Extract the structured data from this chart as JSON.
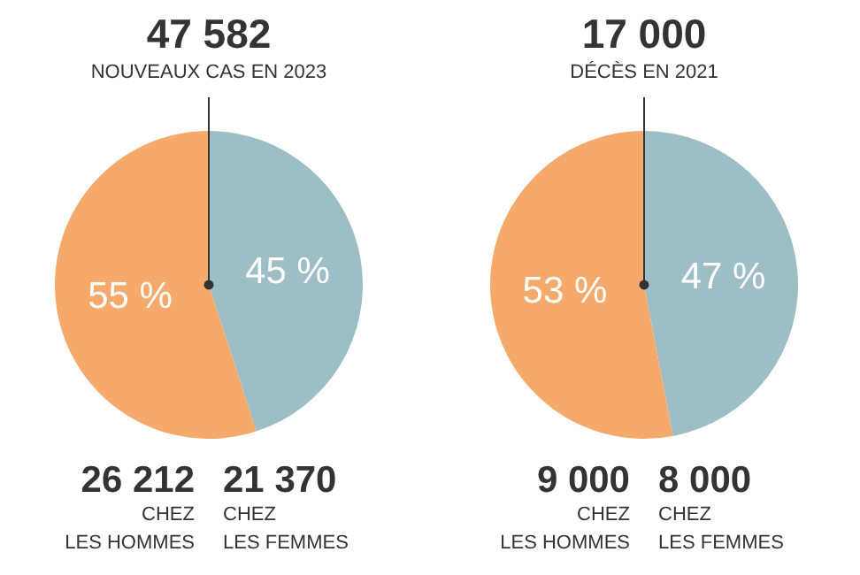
{
  "chart_data": [
    {
      "type": "pie",
      "title": "47 582",
      "subtitle": "NOUVEAUX CAS EN 2023",
      "categories": [
        "CHEZ\nLES FEMMES",
        "CHEZ\nLES HOMMES"
      ],
      "values": [
        45,
        55
      ],
      "value_labels": [
        "45 %",
        "55 %"
      ],
      "colors": [
        "#9dbec5",
        "#f5a96a"
      ],
      "annotations": [
        "21 370",
        "26 212"
      ]
    },
    {
      "type": "pie",
      "title": "17 000",
      "subtitle": "DÉCÈS EN 2021",
      "categories": [
        "CHEZ\nLES FEMMES",
        "CHEZ\nLES HOMMES"
      ],
      "values": [
        47,
        53
      ],
      "value_labels": [
        "47 %",
        "53 %"
      ],
      "colors": [
        "#9dbec5",
        "#f5a96a"
      ],
      "annotations": [
        "8 000",
        "9 000"
      ]
    }
  ]
}
